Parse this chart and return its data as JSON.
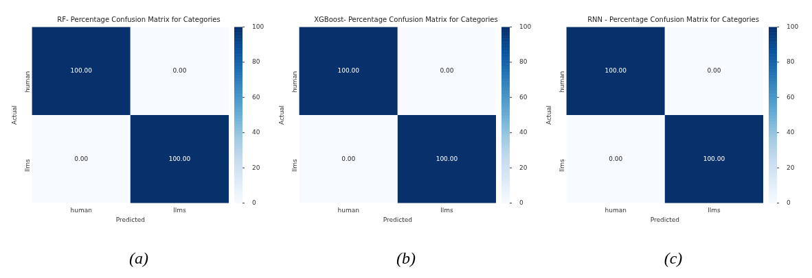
{
  "chart_data": [
    {
      "type": "heatmap",
      "title": "RF- Percentage Confusion Matrix for Categories",
      "xlabel": "Predicted",
      "ylabel": "Actual",
      "categories": [
        "human",
        "llms"
      ],
      "y_categories": [
        "human",
        "llms"
      ],
      "cells": [
        [
          100,
          0
        ],
        [
          0,
          100
        ]
      ],
      "cell_labels": [
        [
          "100.00",
          "0.00"
        ],
        [
          "0.00",
          "100.00"
        ]
      ],
      "clim": [
        0,
        100
      ],
      "cticks": [
        0,
        20,
        40,
        60,
        80,
        100
      ],
      "annotations": [
        "(a)"
      ]
    },
    {
      "type": "heatmap",
      "title": "XGBoost- Percentage Confusion Matrix for Categories",
      "xlabel": "Predicted",
      "ylabel": "Actual",
      "categories": [
        "human",
        "llms"
      ],
      "y_categories": [
        "human",
        "llms"
      ],
      "cells": [
        [
          100,
          0
        ],
        [
          0,
          100
        ]
      ],
      "cell_labels": [
        [
          "100.00",
          "0.00"
        ],
        [
          "0.00",
          "100.00"
        ]
      ],
      "clim": [
        0,
        100
      ],
      "cticks": [
        0,
        20,
        40,
        60,
        80,
        100
      ],
      "annotations": [
        "(b)"
      ]
    },
    {
      "type": "heatmap",
      "title": "RNN - Percentage Confusion Matrix for Categories",
      "xlabel": "Predicted",
      "ylabel": "Actual",
      "categories": [
        "human",
        "llms"
      ],
      "y_categories": [
        "human",
        "llms"
      ],
      "cells": [
        [
          100,
          0
        ],
        [
          0,
          100
        ]
      ],
      "cell_labels": [
        [
          "100.00",
          "0.00"
        ],
        [
          "0.00",
          "100.00"
        ]
      ],
      "clim": [
        0,
        100
      ],
      "cticks": [
        0,
        20,
        40,
        60,
        80,
        100
      ],
      "annotations": [
        "(c)"
      ]
    }
  ]
}
